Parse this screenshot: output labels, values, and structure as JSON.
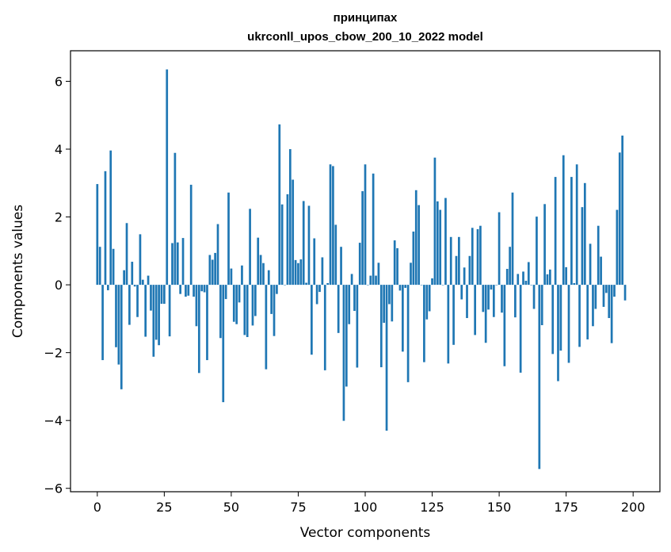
{
  "chart_data": {
    "type": "bar",
    "title": "принципах",
    "subtitle": "ukrconll_upos_cbow_200_10_2022 model",
    "xlabel": "Vector components",
    "ylabel": "Components values",
    "xlim": [
      -10,
      210
    ],
    "ylim": [
      -6.1,
      6.9
    ],
    "xticks": [
      0,
      25,
      50,
      75,
      100,
      125,
      150,
      175,
      200
    ],
    "yticks": [
      -6,
      -4,
      -2,
      0,
      2,
      4,
      6
    ],
    "grid": false,
    "bar_color": "#1f77b4",
    "values": [
      2.97,
      1.12,
      -2.22,
      3.35,
      -0.16,
      3.96,
      1.06,
      -1.84,
      -2.35,
      -3.08,
      0.43,
      1.82,
      -1.18,
      0.68,
      -0.05,
      -0.95,
      1.49,
      0.15,
      -1.53,
      0.27,
      -0.76,
      -2.12,
      -1.62,
      -1.78,
      -0.56,
      -0.56,
      6.35,
      -1.52,
      1.23,
      3.89,
      1.25,
      -0.27,
      1.38,
      -0.35,
      -0.32,
      2.95,
      -0.35,
      -1.22,
      -2.6,
      -0.19,
      -0.22,
      -2.22,
      0.88,
      0.74,
      0.94,
      1.79,
      -1.57,
      -3.46,
      -0.42,
      2.72,
      0.48,
      -1.09,
      -1.16,
      -0.52,
      0.57,
      -1.48,
      -1.54,
      2.24,
      -1.2,
      -0.92,
      1.39,
      0.88,
      0.64,
      -2.49,
      0.43,
      -0.86,
      -1.51,
      -0.27,
      4.73,
      2.37,
      0.0,
      2.67,
      4.0,
      3.1,
      0.73,
      0.64,
      0.75,
      2.47,
      0.06,
      2.33,
      -2.06,
      1.37,
      -0.57,
      -0.21,
      0.81,
      -2.52,
      0.05,
      3.55,
      3.5,
      1.77,
      -1.42,
      1.12,
      -4.01,
      -3.0,
      -1.16,
      0.32,
      -0.77,
      -2.44,
      1.24,
      2.76,
      3.55,
      0.0,
      0.27,
      3.28,
      0.27,
      0.65,
      -2.43,
      -1.12,
      -4.3,
      -0.57,
      -1.08,
      1.31,
      1.08,
      -0.17,
      -1.97,
      -0.09,
      -2.87,
      0.65,
      1.57,
      2.79,
      2.35,
      0.0,
      -2.28,
      -1.02,
      -0.78,
      0.19,
      3.75,
      2.46,
      2.21,
      0.0,
      2.56,
      -2.32,
      1.41,
      -1.77,
      0.85,
      1.41,
      -0.43,
      0.51,
      -0.98,
      0.85,
      1.68,
      -1.48,
      1.64,
      1.74,
      -0.8,
      -1.71,
      -0.73,
      -0.14,
      -0.95,
      0.0,
      2.14,
      -0.82,
      -2.4,
      0.47,
      1.12,
      2.72,
      -0.96,
      0.32,
      -2.59,
      0.39,
      0.12,
      0.67,
      0.0,
      -0.71,
      2.01,
      -5.43,
      -1.19,
      2.38,
      0.31,
      0.45,
      -2.04,
      3.18,
      -2.84,
      -1.94,
      3.82,
      0.52,
      -2.3,
      3.18,
      0.05,
      3.55,
      -1.83,
      2.29,
      3.0,
      -1.61,
      1.21,
      -1.22,
      -0.71,
      1.74,
      0.83,
      -0.65,
      -0.24,
      -0.98,
      -1.72,
      -0.35,
      2.21,
      3.9,
      4.4,
      -0.46
    ]
  }
}
